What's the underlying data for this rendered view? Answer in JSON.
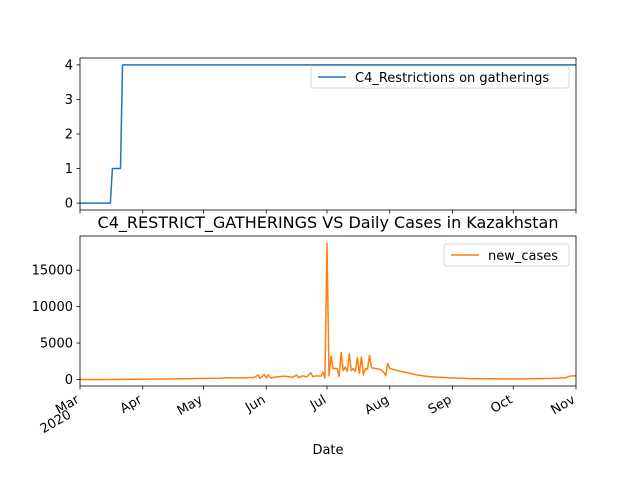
{
  "chart_data": [
    {
      "type": "line",
      "title": "",
      "xlabel": "",
      "ylabel": "",
      "x_range": [
        "2020-03-01",
        "2020-11-01"
      ],
      "ylim": [
        -0.2,
        4.2
      ],
      "yticks": [
        0,
        1,
        2,
        3,
        4
      ],
      "grid": false,
      "legend_position": "upper right",
      "series": [
        {
          "name": "C4_Restrictions on gatherings",
          "color": "#1f77b4",
          "step": true,
          "points": [
            [
              "2020-03-01",
              0
            ],
            [
              "2020-03-16",
              0
            ],
            [
              "2020-03-17",
              1
            ],
            [
              "2020-03-21",
              1
            ],
            [
              "2020-03-22",
              4
            ],
            [
              "2020-11-01",
              4
            ]
          ]
        }
      ]
    },
    {
      "type": "line",
      "title": "C4_RESTRICT_GATHERINGS VS Daily Cases in Kazakhstan",
      "xlabel": "Date",
      "ylabel": "",
      "x_range": [
        "2020-03-01",
        "2020-11-01"
      ],
      "ylim": [
        -900,
        19700
      ],
      "yticks": [
        0,
        5000,
        10000,
        15000
      ],
      "grid": false,
      "legend_position": "upper right",
      "xtick_labels": [
        {
          "date": "2020-03-01",
          "label": "Mar",
          "sublabel": "2020"
        },
        {
          "date": "2020-04-01",
          "label": "Apr"
        },
        {
          "date": "2020-05-01",
          "label": "May"
        },
        {
          "date": "2020-06-01",
          "label": "Jun"
        },
        {
          "date": "2020-07-01",
          "label": "Jul"
        },
        {
          "date": "2020-08-01",
          "label": "Aug"
        },
        {
          "date": "2020-09-01",
          "label": "Sep"
        },
        {
          "date": "2020-10-01",
          "label": "Oct"
        },
        {
          "date": "2020-11-01",
          "label": "Nov"
        }
      ],
      "series": [
        {
          "name": "new_cases",
          "color": "#ff7f0e",
          "step": false,
          "points": [
            [
              "2020-03-01",
              0
            ],
            [
              "2020-03-13",
              0
            ],
            [
              "2020-03-20",
              10
            ],
            [
              "2020-03-27",
              30
            ],
            [
              "2020-04-03",
              40
            ],
            [
              "2020-04-10",
              60
            ],
            [
              "2020-04-17",
              80
            ],
            [
              "2020-04-24",
              110
            ],
            [
              "2020-05-01",
              150
            ],
            [
              "2020-05-08",
              170
            ],
            [
              "2020-05-14",
              230
            ],
            [
              "2020-05-20",
              200
            ],
            [
              "2020-05-26",
              280
            ],
            [
              "2020-05-28",
              600
            ],
            [
              "2020-05-29",
              150
            ],
            [
              "2020-05-31",
              700
            ],
            [
              "2020-06-01",
              200
            ],
            [
              "2020-06-02",
              650
            ],
            [
              "2020-06-03",
              200
            ],
            [
              "2020-06-05",
              300
            ],
            [
              "2020-06-10",
              450
            ],
            [
              "2020-06-14",
              300
            ],
            [
              "2020-06-16",
              600
            ],
            [
              "2020-06-17",
              250
            ],
            [
              "2020-06-19",
              500
            ],
            [
              "2020-06-21",
              350
            ],
            [
              "2020-06-23",
              900
            ],
            [
              "2020-06-24",
              400
            ],
            [
              "2020-06-26",
              500
            ],
            [
              "2020-06-28",
              450
            ],
            [
              "2020-06-29",
              1000
            ],
            [
              "2020-06-30",
              200
            ],
            [
              "2020-07-01",
              18700
            ],
            [
              "2020-07-02",
              500
            ],
            [
              "2020-07-03",
              3200
            ],
            [
              "2020-07-04",
              1500
            ],
            [
              "2020-07-06",
              1500
            ],
            [
              "2020-07-07",
              400
            ],
            [
              "2020-07-08",
              3700
            ],
            [
              "2020-07-09",
              1200
            ],
            [
              "2020-07-10",
              1700
            ],
            [
              "2020-07-11",
              1100
            ],
            [
              "2020-07-12",
              3500
            ],
            [
              "2020-07-13",
              1200
            ],
            [
              "2020-07-14",
              1500
            ],
            [
              "2020-07-15",
              1100
            ],
            [
              "2020-07-16",
              3000
            ],
            [
              "2020-07-17",
              800
            ],
            [
              "2020-07-18",
              3100
            ],
            [
              "2020-07-19",
              600
            ],
            [
              "2020-07-20",
              1500
            ],
            [
              "2020-07-21",
              1400
            ],
            [
              "2020-07-22",
              3300
            ],
            [
              "2020-07-23",
              1600
            ],
            [
              "2020-07-25",
              1500
            ],
            [
              "2020-07-27",
              1400
            ],
            [
              "2020-07-29",
              1000
            ],
            [
              "2020-07-30",
              500
            ],
            [
              "2020-07-31",
              2200
            ],
            [
              "2020-08-01",
              1500
            ],
            [
              "2020-08-05",
              1200
            ],
            [
              "2020-08-10",
              900
            ],
            [
              "2020-08-15",
              600
            ],
            [
              "2020-08-20",
              400
            ],
            [
              "2020-08-25",
              300
            ],
            [
              "2020-09-01",
              200
            ],
            [
              "2020-09-10",
              120
            ],
            [
              "2020-09-20",
              90
            ],
            [
              "2020-10-01",
              80
            ],
            [
              "2020-10-10",
              90
            ],
            [
              "2020-10-20",
              150
            ],
            [
              "2020-10-27",
              250
            ],
            [
              "2020-10-29",
              450
            ],
            [
              "2020-11-01",
              500
            ]
          ]
        }
      ]
    }
  ]
}
